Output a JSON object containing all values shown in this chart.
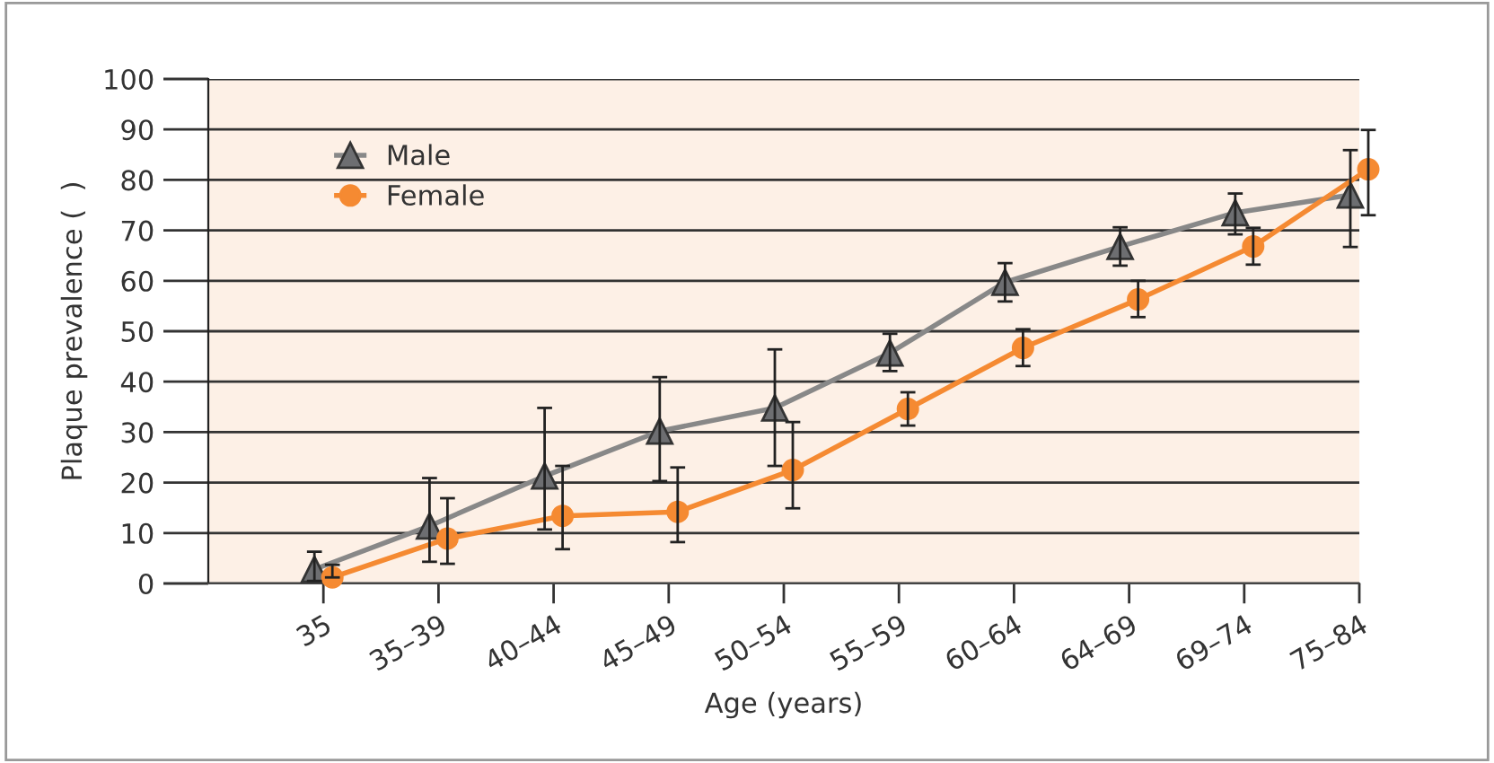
{
  "chart_data": {
    "type": "line",
    "xlabel": "Age (years)",
    "ylabel": "Plaque prevalence (  )",
    "categories": [
      "35",
      "35–39",
      "40–44",
      "45–49",
      "50–54",
      "55–59",
      "60–64",
      "64–69",
      "69–74",
      "75–84"
    ],
    "series": [
      {
        "name": "Male",
        "color": "#6d6e71",
        "marker": "triangle",
        "values": [
          2.8,
          11.4,
          21.3,
          30.2,
          34.8,
          45.7,
          59.7,
          66.8,
          73.5,
          77.0
        ],
        "errors": [
          [
            0.5,
            6.3
          ],
          [
            4.3,
            20.9
          ],
          [
            10.7,
            34.8
          ],
          [
            20.3,
            40.9
          ],
          [
            23.3,
            46.4
          ],
          [
            42.1,
            49.5
          ],
          [
            55.9,
            63.5
          ],
          [
            63.0,
            70.6
          ],
          [
            69.2,
            77.3
          ],
          [
            66.7,
            85.9
          ]
        ]
      },
      {
        "name": "Female",
        "color": "#f58a32",
        "marker": "circle",
        "values": [
          1.2,
          8.9,
          13.4,
          14.2,
          22.5,
          34.6,
          46.7,
          56.3,
          66.8,
          82.1
        ],
        "errors": [
          [
            1.2,
            3.7
          ],
          [
            3.9,
            16.9
          ],
          [
            6.8,
            23.3
          ],
          [
            8.2,
            23.0
          ],
          [
            14.9,
            32.0
          ],
          [
            31.3,
            37.9
          ],
          [
            43.1,
            50.4
          ],
          [
            52.8,
            60.0
          ],
          [
            63.2,
            70.5
          ],
          [
            73.0,
            89.9
          ]
        ]
      }
    ],
    "ylim": [
      0,
      100
    ],
    "yticks": [
      0,
      10,
      20,
      30,
      40,
      50,
      60,
      70,
      80,
      90,
      100
    ],
    "grid": "y",
    "legend": "top left"
  }
}
